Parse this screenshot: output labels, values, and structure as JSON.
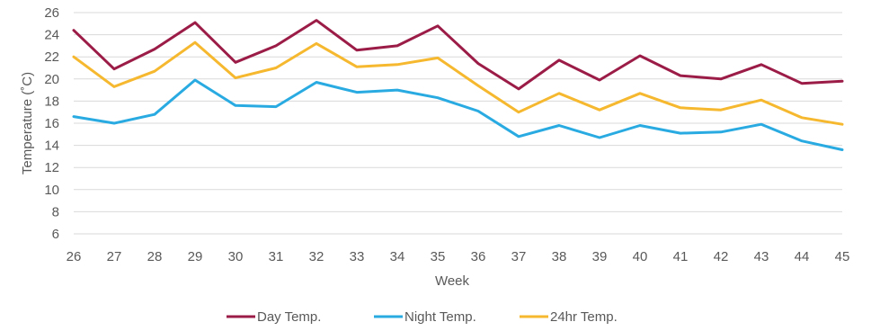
{
  "chart_data": {
    "type": "line",
    "xlabel": "Week",
    "ylabel": "Temperature (˚C)",
    "ylim": [
      6,
      26
    ],
    "yticks": [
      6,
      8,
      10,
      12,
      14,
      16,
      18,
      20,
      22,
      24,
      26
    ],
    "grid": "horizontal",
    "legend": "bottom-center",
    "categories": [
      "26",
      "27",
      "28",
      "29",
      "30",
      "31",
      "32",
      "33",
      "34",
      "35",
      "36",
      "37",
      "38",
      "39",
      "40",
      "41",
      "42",
      "43",
      "44",
      "45"
    ],
    "series": [
      {
        "name": "Day Temp.",
        "color": "#9b1c47",
        "values": [
          24.4,
          20.9,
          22.7,
          25.1,
          21.5,
          23.0,
          25.3,
          22.6,
          23.0,
          24.8,
          21.4,
          19.1,
          21.7,
          19.9,
          22.1,
          20.3,
          20.0,
          21.3,
          19.6,
          19.8
        ]
      },
      {
        "name": "Night Temp.",
        "color": "#29abe2",
        "values": [
          16.6,
          16.0,
          16.8,
          19.9,
          17.6,
          17.5,
          19.7,
          18.8,
          19.0,
          18.3,
          17.1,
          14.8,
          15.8,
          14.7,
          15.8,
          15.1,
          15.2,
          15.9,
          14.4,
          13.6
        ]
      },
      {
        "name": "24hr Temp.",
        "color": "#f5b82e",
        "values": [
          22.0,
          19.3,
          20.7,
          23.3,
          20.1,
          21.0,
          23.2,
          21.1,
          21.3,
          21.9,
          19.4,
          17.0,
          18.7,
          17.2,
          18.7,
          17.4,
          17.2,
          18.1,
          16.5,
          15.9
        ]
      }
    ]
  }
}
